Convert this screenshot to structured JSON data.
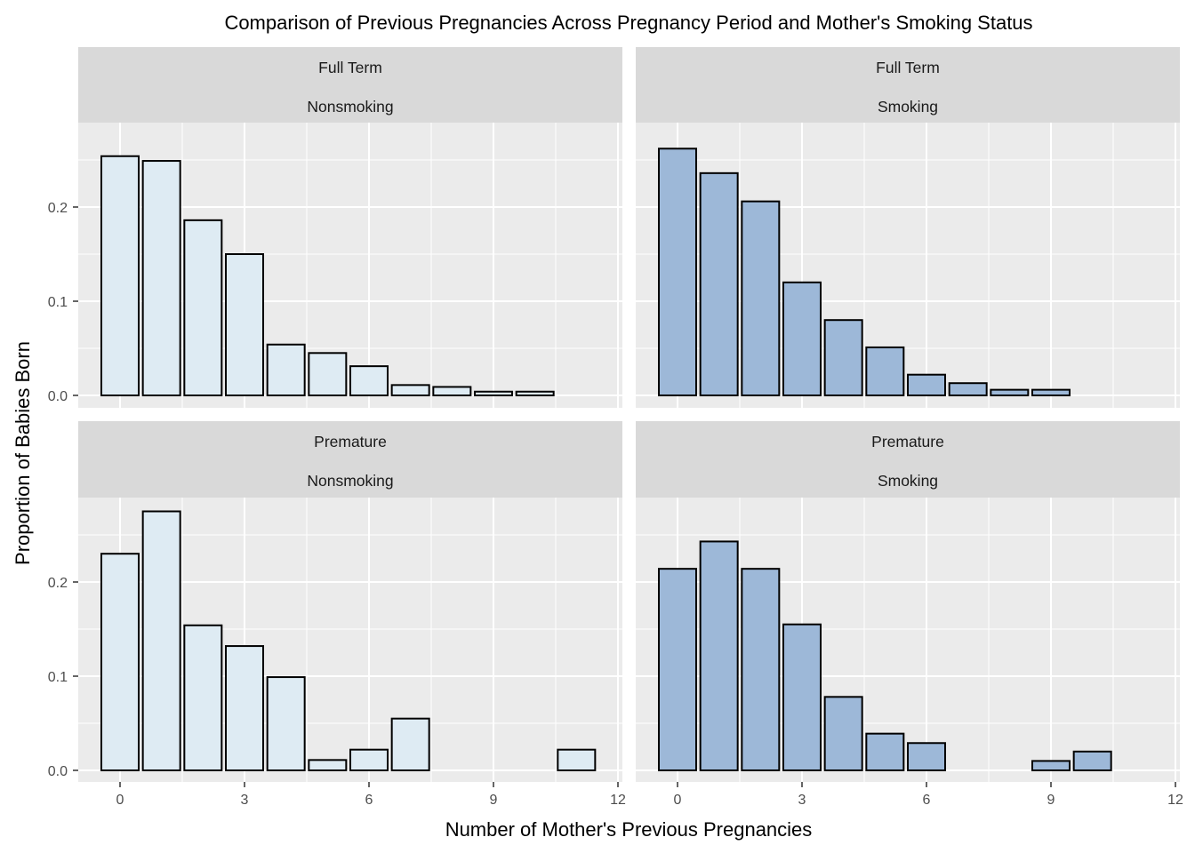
{
  "chart_data": {
    "type": "bar",
    "title": "Comparison of Previous Pregnancies Across Pregnancy Period and Mother's Smoking Status",
    "xlabel": "Number of Mother's Previous Pregnancies",
    "ylabel": "Proportion of Babies Born",
    "x_ticks": [
      0,
      3,
      6,
      9,
      12
    ],
    "y_ticks": [
      0.0,
      0.1,
      0.2
    ],
    "y_tick_labels": [
      "0.0",
      "0.1",
      "0.2"
    ],
    "xlim": [
      -0.5,
      12
    ],
    "ylim": [
      0,
      0.275
    ],
    "grid": true,
    "colors": {
      "panel_background": "#EBEBEB",
      "strip_background": "#D9D9D9",
      "grid": "#FFFFFF",
      "bar_outline": "#000000",
      "nonsmoking_fill": "#DEEBF3",
      "smoking_fill": "#9DB8D8"
    },
    "panels": [
      {
        "strip": [
          "Full Term",
          "Nonsmoking"
        ],
        "fill": "nonsmoking",
        "x": [
          0,
          1,
          2,
          3,
          4,
          5,
          6,
          7,
          8,
          9,
          10
        ],
        "values": [
          0.254,
          0.249,
          0.186,
          0.15,
          0.054,
          0.045,
          0.031,
          0.011,
          0.009,
          0.004,
          0.004
        ]
      },
      {
        "strip": [
          "Full Term",
          "Smoking"
        ],
        "fill": "smoking",
        "x": [
          0,
          1,
          2,
          3,
          4,
          5,
          6,
          7,
          8,
          9
        ],
        "values": [
          0.262,
          0.236,
          0.206,
          0.12,
          0.08,
          0.051,
          0.022,
          0.013,
          0.006,
          0.006
        ]
      },
      {
        "strip": [
          "Premature",
          "Nonsmoking"
        ],
        "fill": "nonsmoking",
        "x": [
          0,
          1,
          2,
          3,
          4,
          5,
          6,
          7,
          11
        ],
        "values": [
          0.23,
          0.275,
          0.154,
          0.132,
          0.099,
          0.011,
          0.022,
          0.055,
          0.022
        ]
      },
      {
        "strip": [
          "Premature",
          "Smoking"
        ],
        "fill": "smoking",
        "x": [
          0,
          1,
          2,
          3,
          4,
          5,
          6,
          9,
          10
        ],
        "values": [
          0.214,
          0.243,
          0.214,
          0.155,
          0.078,
          0.039,
          0.029,
          0.01,
          0.02
        ]
      }
    ]
  }
}
